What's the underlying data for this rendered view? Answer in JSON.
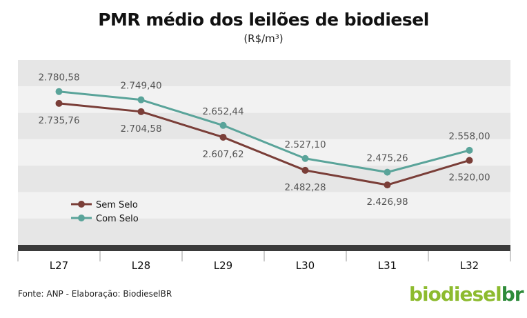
{
  "title": "PMR médio dos leilões de biodiesel",
  "subtitle": "(R$/m³)",
  "source": "Fonte: ANP - Elaboração: BiodieselBR",
  "logo": {
    "part1": "biodiesel",
    "part2": "br"
  },
  "colors": {
    "sem_selo": "#7a3e38",
    "com_selo": "#5aa49a",
    "band_dark": "#e6e6e6",
    "band_light": "#f2f2f2",
    "axis": "#3a3a3a",
    "logo_light": "#8dbb2f",
    "logo_dark": "#2e8b3a"
  },
  "chart_data": {
    "type": "line",
    "title": "PMR médio dos leilões de biodiesel",
    "subtitle": "(R$/m³)",
    "categories": [
      "L27",
      "L28",
      "L29",
      "L30",
      "L31",
      "L32"
    ],
    "series": [
      {
        "name": "Sem Selo",
        "values": [
          2735.76,
          2704.58,
          2607.62,
          2482.28,
          2426.98,
          2520.0
        ],
        "labels": [
          "2.735,76",
          "2.704,58",
          "2.607,62",
          "2.482,28",
          "2.426,98",
          "2.520,00"
        ]
      },
      {
        "name": "Com Selo",
        "values": [
          2780.58,
          2749.4,
          2652.44,
          2527.1,
          2475.26,
          2558.0
        ],
        "labels": [
          "2.780,58",
          "2.749,40",
          "2.652,44",
          "2.527,10",
          "2.475,26",
          "2.558,00"
        ]
      }
    ],
    "ylim": [
      2200,
      2900
    ],
    "grid": "alternating horizontal bands",
    "legend_position": "bottom-left"
  }
}
